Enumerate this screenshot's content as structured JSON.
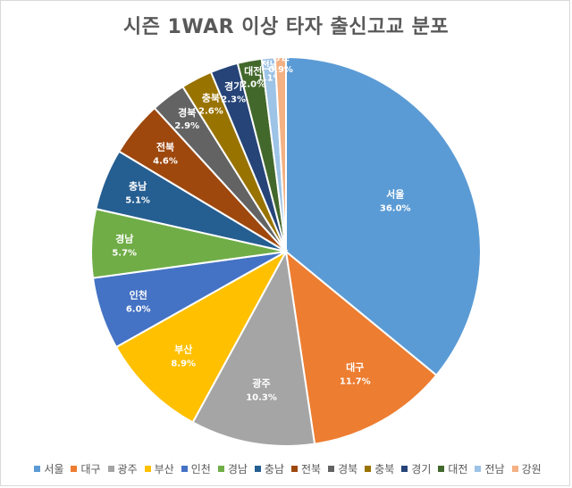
{
  "chart_data": {
    "type": "pie",
    "title": "시즌 1WAR 이상 타자 출신고교 분포",
    "legend_position": "bottom",
    "slices": [
      {
        "label": "서울",
        "value": 36.0,
        "display": "36.0%",
        "color": "#5b9bd5"
      },
      {
        "label": "대구",
        "value": 11.7,
        "display": "11.7%",
        "color": "#ed7d31"
      },
      {
        "label": "광주",
        "value": 10.3,
        "display": "10.3%",
        "color": "#a5a5a5"
      },
      {
        "label": "부산",
        "value": 8.9,
        "display": "8.9%",
        "color": "#ffc000"
      },
      {
        "label": "인천",
        "value": 6.0,
        "display": "6.0%",
        "color": "#4472c4"
      },
      {
        "label": "경남",
        "value": 5.7,
        "display": "5.7%",
        "color": "#70ad47"
      },
      {
        "label": "충남",
        "value": 5.1,
        "display": "5.1%",
        "color": "#255e91"
      },
      {
        "label": "전북",
        "value": 4.6,
        "display": "4.6%",
        "color": "#9e480e"
      },
      {
        "label": "경북",
        "value": 2.9,
        "display": "2.9%",
        "color": "#636363"
      },
      {
        "label": "충북",
        "value": 2.6,
        "display": "2.6%",
        "color": "#997300"
      },
      {
        "label": "경기",
        "value": 2.3,
        "display": "2.3%",
        "color": "#264478"
      },
      {
        "label": "대전",
        "value": 2.0,
        "display": "2.0%",
        "color": "#43682b"
      },
      {
        "label": "전남",
        "value": 1.1,
        "display": "1.1%",
        "color": "#9dc3e6"
      },
      {
        "label": "강원",
        "value": 0.9,
        "display": "0.9%",
        "color": "#f4b183"
      }
    ]
  }
}
